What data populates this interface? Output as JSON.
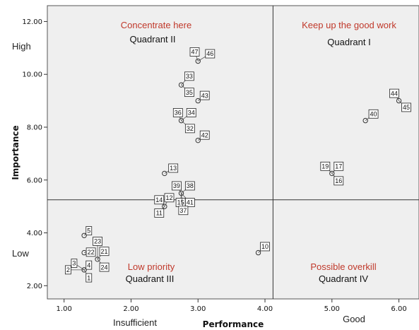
{
  "chart_data": {
    "type": "scatter",
    "xlabel": "Performance",
    "ylabel": "Importance",
    "xlim": [
      0.75,
      6.3
    ],
    "ylim": [
      1.5,
      12.6
    ],
    "x_ticks": [
      "1.00",
      "2.00",
      "3.00",
      "4.00",
      "5.00",
      "6.00"
    ],
    "y_ticks": [
      "2.00",
      "4.00",
      "6.00",
      "8.00",
      "10.00",
      "12.00"
    ],
    "x_side_labels": [
      "Insufficient",
      "Good"
    ],
    "y_side_labels": [
      "High",
      "Low"
    ],
    "divider_x": 4.12,
    "divider_y": 5.25,
    "grid": false,
    "plot_background": "#efefef",
    "quadrants": [
      {
        "title": "Concentrate here",
        "subtitle": "Quadrant II"
      },
      {
        "title": "Keep up the good work",
        "subtitle": "Quadrant I"
      },
      {
        "title": "Low priority",
        "subtitle": "Quadrant III"
      },
      {
        "title": "Possible overkill",
        "subtitle": "Quadrant IV"
      }
    ],
    "points": [
      {
        "x": 3.0,
        "y": 10.5
      },
      {
        "x": 2.75,
        "y": 9.6
      },
      {
        "x": 3.0,
        "y": 9.0
      },
      {
        "x": 2.75,
        "y": 8.25
      },
      {
        "x": 3.0,
        "y": 7.5
      },
      {
        "x": 2.5,
        "y": 6.25
      },
      {
        "x": 2.75,
        "y": 5.5
      },
      {
        "x": 2.5,
        "y": 5.0
      },
      {
        "x": 5.0,
        "y": 6.25
      },
      {
        "x": 5.5,
        "y": 8.25
      },
      {
        "x": 6.0,
        "y": 9.0
      },
      {
        "x": 1.3,
        "y": 3.9
      },
      {
        "x": 1.3,
        "y": 3.25
      },
      {
        "x": 1.5,
        "y": 3.0
      },
      {
        "x": 1.3,
        "y": 2.6
      },
      {
        "x": 3.9,
        "y": 3.25
      }
    ],
    "labels": [
      {
        "text": "47",
        "x": 2.95,
        "y": 10.85,
        "px": 3.0,
        "py": 10.5
      },
      {
        "text": "46",
        "x": 3.18,
        "y": 10.78,
        "px": 3.0,
        "py": 10.5
      },
      {
        "text": "33",
        "x": 2.87,
        "y": 9.93,
        "px": 2.75,
        "py": 9.6
      },
      {
        "text": "35",
        "x": 2.87,
        "y": 9.32,
        "px": 2.75,
        "py": 9.6
      },
      {
        "text": "43",
        "x": 3.1,
        "y": 9.2,
        "px": 3.0,
        "py": 9.0
      },
      {
        "text": "36",
        "x": 2.7,
        "y": 8.55,
        "px": 2.75,
        "py": 8.25
      },
      {
        "text": "34",
        "x": 2.9,
        "y": 8.55,
        "px": 2.75,
        "py": 8.25
      },
      {
        "text": "32",
        "x": 2.88,
        "y": 7.95,
        "px": 2.75,
        "py": 8.25
      },
      {
        "text": "42",
        "x": 3.1,
        "y": 7.7,
        "px": 3.0,
        "py": 7.5
      },
      {
        "text": "13",
        "x": 2.63,
        "y": 6.45,
        "px": 2.5,
        "py": 6.25
      },
      {
        "text": "39",
        "x": 2.68,
        "y": 5.78,
        "px": 2.75,
        "py": 5.5
      },
      {
        "text": "38",
        "x": 2.88,
        "y": 5.78,
        "px": 2.75,
        "py": 5.5
      },
      {
        "text": "14",
        "x": 2.42,
        "y": 5.25,
        "px": 2.5,
        "py": 5.0
      },
      {
        "text": "12",
        "x": 2.57,
        "y": 5.33,
        "px": 2.5,
        "py": 5.0
      },
      {
        "text": "15",
        "x": 2.74,
        "y": 5.15,
        "px": 2.75,
        "py": 5.5
      },
      {
        "text": "41",
        "x": 2.88,
        "y": 5.15,
        "px": 2.75,
        "py": 5.5
      },
      {
        "text": "11",
        "x": 2.42,
        "y": 4.75,
        "px": 2.5,
        "py": 5.0
      },
      {
        "text": "37",
        "x": 2.78,
        "y": 4.85,
        "px": 2.75,
        "py": 5.5
      },
      {
        "text": "44",
        "x": 5.93,
        "y": 9.28,
        "px": 6.0,
        "py": 9.0
      },
      {
        "text": "45",
        "x": 6.11,
        "y": 8.75,
        "px": 6.0,
        "py": 9.0
      },
      {
        "text": "40",
        "x": 5.62,
        "y": 8.5,
        "px": 5.5,
        "py": 8.25
      },
      {
        "text": "19",
        "x": 4.9,
        "y": 6.52,
        "px": 5.0,
        "py": 6.25
      },
      {
        "text": "17",
        "x": 5.1,
        "y": 6.52,
        "px": 5.0,
        "py": 6.25
      },
      {
        "text": "16",
        "x": 5.1,
        "y": 5.97,
        "px": 5.0,
        "py": 6.25
      },
      {
        "text": "5",
        "x": 1.37,
        "y": 4.08,
        "px": 1.3,
        "py": 3.9
      },
      {
        "text": "23",
        "x": 1.5,
        "y": 3.68,
        "px": 1.5,
        "py": 3.0
      },
      {
        "text": "22",
        "x": 1.4,
        "y": 3.27,
        "px": 1.3,
        "py": 3.25
      },
      {
        "text": "21",
        "x": 1.6,
        "y": 3.3,
        "px": 1.5,
        "py": 3.0
      },
      {
        "text": "3",
        "x": 1.15,
        "y": 2.85,
        "px": 1.3,
        "py": 2.6
      },
      {
        "text": "4",
        "x": 1.37,
        "y": 2.78,
        "px": 1.3,
        "py": 2.6
      },
      {
        "text": "2",
        "x": 1.06,
        "y": 2.6,
        "px": 1.3,
        "py": 2.6
      },
      {
        "text": "24",
        "x": 1.6,
        "y": 2.7,
        "px": 1.5,
        "py": 3.0
      },
      {
        "text": "1",
        "x": 1.37,
        "y": 2.3,
        "px": 1.3,
        "py": 2.6
      },
      {
        "text": "10",
        "x": 4.0,
        "y": 3.48,
        "px": 3.9,
        "py": 3.25
      }
    ]
  }
}
